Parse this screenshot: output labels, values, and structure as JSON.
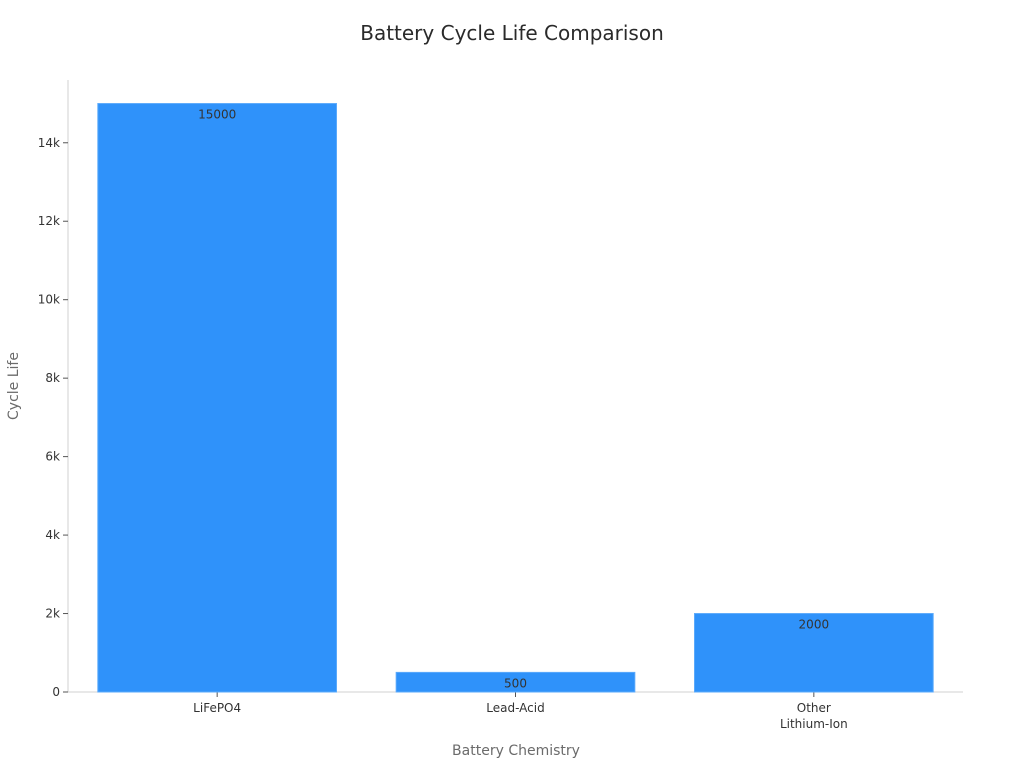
{
  "chart_data": {
    "type": "bar",
    "title": "Battery Cycle Life Comparison",
    "xlabel": "Battery Chemistry",
    "ylabel": "Cycle Life",
    "categories": [
      [
        "LiFePO4"
      ],
      [
        "Lead-Acid"
      ],
      [
        "Other",
        "Lithium-Ion"
      ]
    ],
    "values": [
      15000,
      500,
      2000
    ],
    "data_labels": [
      "15000",
      "500",
      "2000"
    ],
    "ylim": [
      0,
      15600
    ],
    "yticks": [
      0,
      2000,
      4000,
      6000,
      8000,
      10000,
      12000,
      14000
    ],
    "ytick_labels": [
      "0",
      "2k",
      "4k",
      "6k",
      "8k",
      "10k",
      "12k",
      "14k"
    ],
    "bar_color": "#2f92fa",
    "grid": false,
    "legend": "none"
  }
}
